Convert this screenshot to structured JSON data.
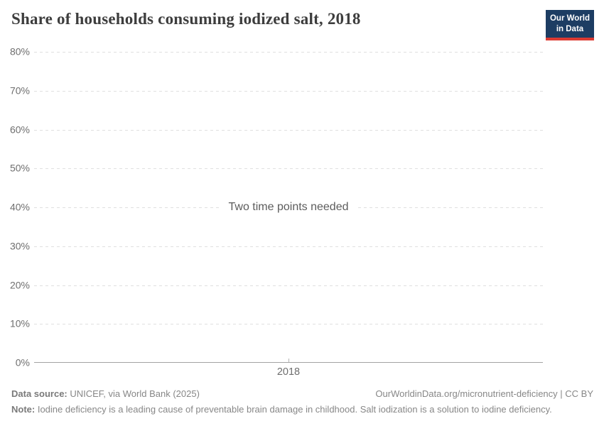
{
  "header": {
    "title": "Share of households consuming iodized salt, 2018",
    "logo": {
      "line1": "Our World",
      "line2": "in Data",
      "bg_color": "#1d3d63",
      "accent_color": "#dc3a32"
    }
  },
  "chart_data": {
    "type": "line",
    "title": "Share of households consuming iodized salt, 2018",
    "series": [],
    "values": [],
    "message": "Two time points needed",
    "xlabel": "",
    "ylabel": "",
    "ylim": [
      0,
      80
    ],
    "yticks": [
      {
        "value": 0,
        "label": "0%"
      },
      {
        "value": 10,
        "label": "10%"
      },
      {
        "value": 20,
        "label": "20%"
      },
      {
        "value": 30,
        "label": "30%"
      },
      {
        "value": 40,
        "label": "40%"
      },
      {
        "value": 50,
        "label": "50%"
      },
      {
        "value": 60,
        "label": "60%"
      },
      {
        "value": 70,
        "label": "70%"
      },
      {
        "value": 80,
        "label": "80%"
      }
    ],
    "xticks": [
      {
        "value": 2018,
        "label": "2018"
      }
    ],
    "grid": "horizontal-dashed",
    "legend_position": "none",
    "colors": {
      "gridline": "#e0e0e0",
      "axis": "#a3a3a3",
      "tick_text": "#6e6e6e",
      "message_text": "#5c5c5c"
    }
  },
  "footer": {
    "datasource_label": "Data source:",
    "datasource_value": " UNICEF, via World Bank (2025)",
    "link_text": "OurWorldinData.org/micronutrient-deficiency | CC BY",
    "note_label": "Note:",
    "note_value": " Iodine deficiency is a leading cause of preventable brain damage in childhood. Salt iodization is a solution to iodine deficiency."
  }
}
